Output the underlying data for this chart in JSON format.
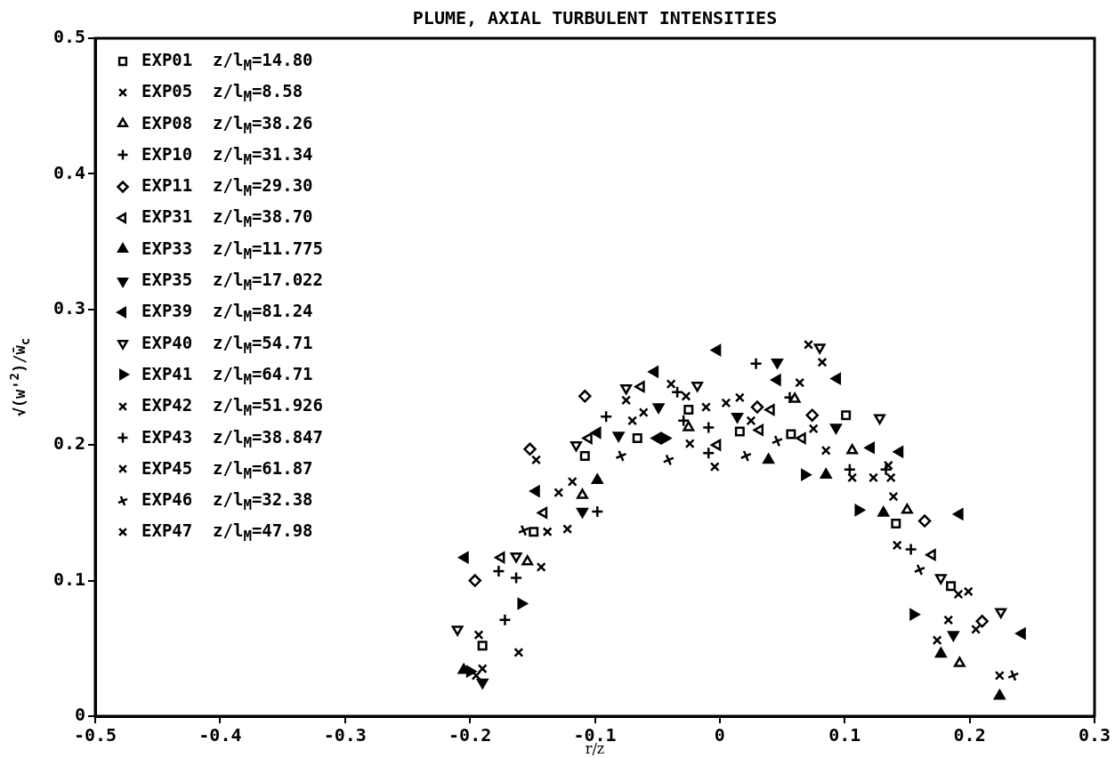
{
  "chart_data": {
    "type": "scatter",
    "title": "PLUME, AXIAL TURBULENT INTENSITIES",
    "xlabel": "r/z",
    "ylabel": "√(w'$^{2}$)/w̄$_{c}$",
    "xlim": [
      -0.5,
      0.3
    ],
    "xticks": [
      -0.5,
      -0.4,
      -0.3,
      -0.2,
      -0.1,
      0,
      0.1,
      0.2,
      0.3
    ],
    "ylim": [
      0,
      0.5
    ],
    "yticks": [
      0,
      0.1,
      0.2,
      0.3,
      0.4,
      0.5
    ],
    "grid": false,
    "legend": "top left",
    "series": [
      {
        "name": "EXP01  z/l$_{M}$=14.80",
        "color": "#000000",
        "marker": "square",
        "x": [
          -0.19,
          -0.149,
          -0.108,
          -0.066,
          -0.025,
          0.016,
          0.057,
          0.101,
          0.141,
          0.185
        ],
        "values": [
          0.052,
          0.136,
          0.192,
          0.205,
          0.226,
          0.21,
          0.208,
          0.222,
          0.142,
          0.096
        ]
      },
      {
        "name": "EXP05  z/l$_{M}$=8.58",
        "color": "#000000",
        "marker": "cross",
        "x": [
          -0.147,
          -0.122,
          -0.07,
          -0.024,
          0.025,
          0.075,
          0.123,
          0.191,
          0.205,
          0.224
        ],
        "values": [
          0.189,
          0.138,
          0.218,
          0.201,
          0.218,
          0.212,
          0.176,
          0.09,
          0.064,
          0.03
        ]
      },
      {
        "name": "EXP08  z/l$_{M}$=38.26",
        "color": "#000000",
        "marker": "triangle",
        "x": [
          -0.154,
          -0.11,
          -0.025,
          0.06,
          0.106,
          0.15,
          0.192
        ],
        "values": [
          0.114,
          0.163,
          0.213,
          0.234,
          0.196,
          0.152,
          0.039
        ]
      },
      {
        "name": "EXP10  z/l$_{M}$=31.34",
        "color": "#000000",
        "marker": "cross",
        "x": [
          -0.163,
          -0.029,
          -0.009,
          0.104,
          0.153
        ],
        "values": [
          0.102,
          0.218,
          0.194,
          0.182,
          0.123
        ]
      },
      {
        "name": "EXP11  z/l$_{M}$=29.30",
        "color": "#000000",
        "marker": "diamond",
        "x": [
          -0.196,
          -0.152,
          -0.108,
          0.03,
          0.074,
          0.164,
          0.21
        ],
        "values": [
          0.1,
          0.197,
          0.236,
          0.228,
          0.222,
          0.144,
          0.07
        ]
      },
      {
        "name": "EXP31  z/l$_{M}$=38.70",
        "color": "#000000",
        "marker": "triangle",
        "x": [
          -0.175,
          -0.141,
          -0.105,
          -0.063,
          -0.002,
          0.032,
          0.041,
          0.066,
          0.17
        ],
        "values": [
          0.117,
          0.15,
          0.205,
          0.243,
          0.2,
          0.211,
          0.226,
          0.205,
          0.119
        ]
      },
      {
        "name": "EXP33  z/l$_{M}$=11.775",
        "color": "#000000",
        "marker": "triangle",
        "x": [
          -0.205,
          -0.098,
          0.039,
          0.085,
          0.131,
          0.177,
          0.224
        ],
        "values": [
          0.034,
          0.174,
          0.189,
          0.178,
          0.15,
          0.046,
          0.015
        ]
      },
      {
        "name": "EXP35  z/l$_{M}$=17.022",
        "color": "#000000",
        "marker": "triangle",
        "x": [
          -0.19,
          -0.11,
          -0.081,
          -0.049,
          0.014,
          0.046,
          0.093,
          0.187
        ],
        "values": [
          0.025,
          0.151,
          0.207,
          0.228,
          0.221,
          0.261,
          0.213,
          0.06
        ]
      },
      {
        "name": "EXP39  z/l$_{M}$=81.24",
        "color": "#000000",
        "marker": "triangle",
        "x": [
          -0.204,
          -0.147,
          -0.098,
          -0.052,
          -0.05,
          -0.002,
          0.046,
          0.094,
          0.121,
          0.144,
          0.192,
          0.242
        ],
        "values": [
          0.117,
          0.166,
          0.209,
          0.254,
          0.205,
          0.27,
          0.248,
          0.249,
          0.198,
          0.195,
          0.149,
          0.061
        ]
      },
      {
        "name": "EXP40  z/l$_{M}$=54.71",
        "color": "#000000",
        "marker": "triangle",
        "x": [
          -0.21,
          -0.163,
          -0.115,
          -0.075,
          -0.018,
          0.08,
          0.128,
          0.177,
          0.225
        ],
        "values": [
          0.064,
          0.118,
          0.2,
          0.242,
          0.244,
          0.272,
          0.22,
          0.102,
          0.077
        ]
      },
      {
        "name": "EXP41  z/l$_{M}$=64.71",
        "color": "#000000",
        "marker": "triangle",
        "x": [
          -0.2,
          -0.159,
          -0.044,
          0.068,
          0.111,
          0.155
        ],
        "values": [
          0.033,
          0.083,
          0.205,
          0.178,
          0.152,
          0.075
        ]
      },
      {
        "name": "EXP42  z/l$_{M}$=51.926",
        "color": "#000000",
        "marker": "cross",
        "x": [
          -0.195,
          -0.143,
          -0.138,
          -0.118,
          -0.075,
          -0.039,
          -0.011,
          0.064,
          0.106,
          0.137,
          0.142,
          0.183
        ],
        "values": [
          0.03,
          0.11,
          0.136,
          0.173,
          0.233,
          0.245,
          0.228,
          0.246,
          0.176,
          0.176,
          0.126,
          0.071
        ]
      },
      {
        "name": "EXP43  z/l$_{M}$=38.847",
        "color": "#000000",
        "marker": "cross",
        "x": [
          -0.177,
          -0.172,
          -0.098,
          -0.091,
          -0.034,
          -0.009,
          0.029,
          0.056,
          0.133
        ],
        "values": [
          0.107,
          0.071,
          0.151,
          0.221,
          0.239,
          0.213,
          0.26,
          0.235,
          0.182
        ]
      },
      {
        "name": "EXP45  z/l$_{M}$=61.87",
        "color": "#000000",
        "marker": "cross",
        "x": [
          -0.193,
          -0.19,
          -0.129,
          -0.004,
          0.016,
          0.082,
          0.085,
          0.135,
          0.174
        ],
        "values": [
          0.06,
          0.035,
          0.165,
          0.184,
          0.235,
          0.261,
          0.196,
          0.185,
          0.056
        ]
      },
      {
        "name": "EXP46  z/l$_{M}$=32.38",
        "color": "#000000",
        "marker": "cross",
        "x": [
          -0.157,
          -0.079,
          -0.041,
          0.021,
          0.046,
          0.16,
          0.235
        ],
        "values": [
          0.137,
          0.192,
          0.189,
          0.192,
          0.203,
          0.108,
          0.03
        ]
      },
      {
        "name": "EXP47  z/l$_{M}$=47.98",
        "color": "#000000",
        "marker": "cross",
        "x": [
          -0.161,
          -0.061,
          -0.027,
          0.005,
          0.071,
          0.139,
          0.199
        ],
        "values": [
          0.047,
          0.224,
          0.236,
          0.231,
          0.274,
          0.162,
          0.092
        ]
      }
    ]
  }
}
